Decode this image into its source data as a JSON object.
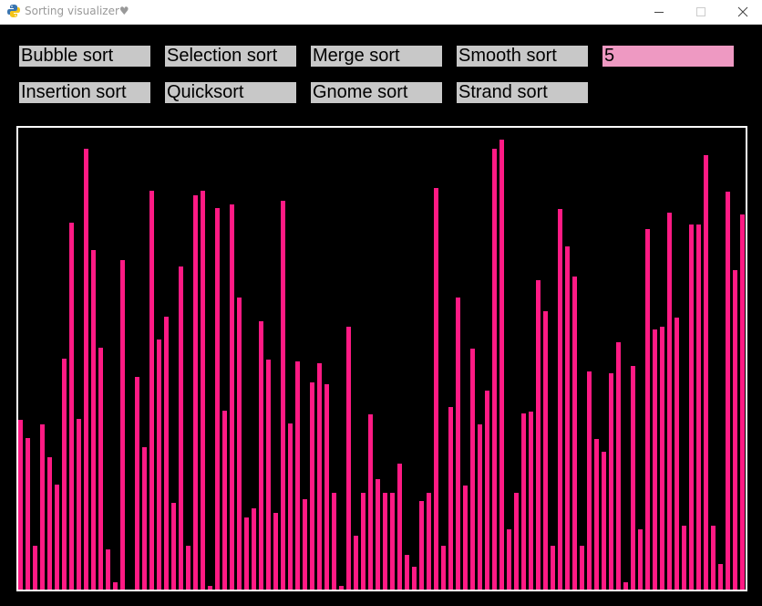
{
  "window": {
    "title": "Sorting visualizer♥",
    "icon": "python-icon"
  },
  "buttons": {
    "bubble": "Bubble sort",
    "selection": "Selection sort",
    "merge": "Merge sort",
    "smooth": "Smooth sort",
    "insertion": "Insertion sort",
    "quick": "Quicksort",
    "gnome": "Gnome sort",
    "strand": "Strand sort"
  },
  "speed_input": {
    "value": "5"
  },
  "colors": {
    "bar": "#ff1a84",
    "input_bg": "#ee99c2",
    "button_bg": "#c8c8c8",
    "frame": "#ffffff",
    "background": "#000000"
  },
  "bars": [
    186,
    166,
    48,
    181,
    145,
    115,
    253,
    402,
    187,
    483,
    372,
    265,
    44,
    8,
    361,
    0,
    233,
    156,
    437,
    274,
    299,
    95,
    354,
    48,
    432,
    437,
    4,
    418,
    196,
    422,
    320,
    79,
    89,
    294,
    252,
    84,
    426,
    182,
    250,
    99,
    227,
    248,
    225,
    106,
    4,
    288,
    59,
    106,
    192,
    121,
    106,
    106,
    138,
    38,
    25,
    97,
    106,
    440,
    48,
    200,
    320,
    114,
    264,
    181,
    218,
    483,
    493,
    66,
    106,
    193,
    195,
    339,
    305,
    48,
    417,
    376,
    343,
    48,
    239,
    165,
    151,
    237,
    271,
    8,
    245,
    66,
    395,
    285,
    288,
    413,
    298,
    70,
    400,
    400,
    476,
    70,
    28,
    436,
    350,
    411
  ]
}
